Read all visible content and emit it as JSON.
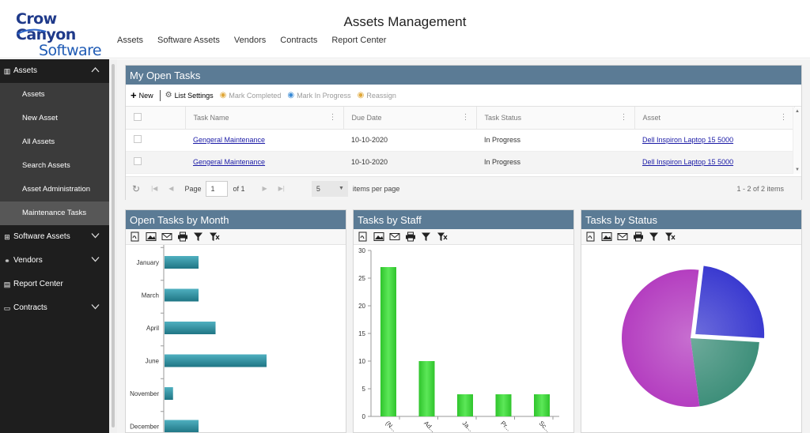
{
  "app": {
    "logo_line1": "Crow Canyon",
    "logo_line2": "Software",
    "title": "Assets Management",
    "top_nav": [
      "Assets",
      "Software Assets",
      "Vendors",
      "Contracts",
      "Report Center"
    ]
  },
  "sidebar": {
    "groups": [
      {
        "label": "Assets",
        "icon": "building-icon",
        "expanded": true,
        "items": [
          "Assets",
          "New Asset",
          "All Assets",
          "Search Assets",
          "Asset Administration",
          "Maintenance Tasks"
        ],
        "active": "Maintenance Tasks"
      },
      {
        "label": "Software Assets",
        "icon": "windows-icon",
        "expanded": false
      },
      {
        "label": "Vendors",
        "icon": "handshake-icon",
        "expanded": false
      },
      {
        "label": "Report Center",
        "icon": "report-icon",
        "expanded": false
      },
      {
        "label": "Contracts",
        "icon": "document-icon",
        "expanded": false
      }
    ]
  },
  "tasks_panel": {
    "title": "My Open Tasks",
    "toolbar": {
      "new": "New",
      "list_settings": "List Settings",
      "mark_completed": "Mark Completed",
      "mark_in_progress": "Mark In Progress",
      "reassign": "Reassign"
    },
    "columns": [
      "Task Name",
      "Due Date",
      "Task Status",
      "Asset"
    ],
    "rows": [
      {
        "task_name": "Gengeral Maintenance",
        "due_date": "10-10-2020",
        "status": "In Progress",
        "asset": "Dell Inspiron Laptop 15 5000"
      },
      {
        "task_name": "Gengeral Maintenance",
        "due_date": "10-10-2020",
        "status": "In Progress",
        "asset": "Dell Inspiron Laptop 15 5000"
      }
    ],
    "pager": {
      "page_label": "Page",
      "page": "1",
      "of_label": "of 1",
      "page_size": "5",
      "items_per_page_label": "items per page",
      "range": "1 - 2 of 2 items"
    }
  },
  "chart_data": [
    {
      "type": "bar",
      "orientation": "horizontal",
      "title": "Open Tasks by Month",
      "categories": [
        "January",
        "March",
        "April",
        "June",
        "November",
        "December"
      ],
      "values": [
        2,
        2,
        3,
        6,
        0.5,
        2
      ],
      "color": "#2a8b9b"
    },
    {
      "type": "bar",
      "title": "Tasks by Staff",
      "categories": [
        "(N...",
        "Ad...",
        "Ja...",
        "Pr...",
        "Sc..."
      ],
      "values": [
        27,
        10,
        4,
        4,
        4
      ],
      "ylim": [
        0,
        30
      ],
      "yticks": [
        0,
        5,
        10,
        15,
        20,
        25,
        30
      ],
      "color": "#3ed13a"
    },
    {
      "type": "pie",
      "title": "Tasks by Status",
      "slices": [
        {
          "value": 24,
          "color": "#3a3ad0",
          "exploded": true
        },
        {
          "value": 22,
          "color": "#3e8f7a"
        },
        {
          "value": 54,
          "color": "#b43ec0"
        }
      ]
    }
  ],
  "colors": {
    "panel_header": "#5b7b95",
    "sidebar_bg": "#1e1e1e",
    "link": "#1a1aa6"
  }
}
